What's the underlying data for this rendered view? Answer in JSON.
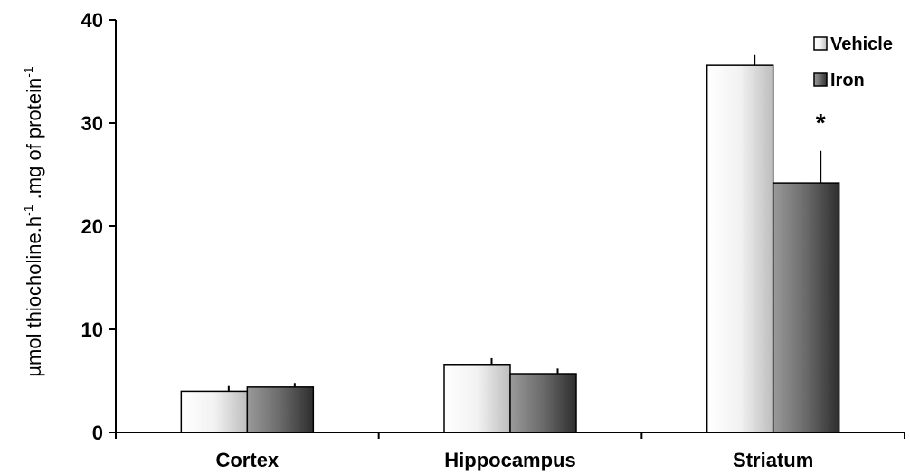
{
  "chart_data": {
    "type": "bar",
    "ylabel": "µmol thiocholine.h",
    "ylabel_sup1": "-1",
    "ylabel_mid": " .mg of protein",
    "ylabel_sup2": "-1",
    "categories": [
      "Cortex",
      "Hippocampus",
      "Striatum"
    ],
    "ylim": [
      0,
      40
    ],
    "yticks": [
      "0",
      "10",
      "20",
      "30",
      "40"
    ],
    "series": [
      {
        "name": "Vehicle",
        "values": [
          4.0,
          6.6,
          35.6
        ],
        "errors": [
          0.5,
          0.6,
          1.0
        ],
        "color": "#ededed"
      },
      {
        "name": "Iron",
        "values": [
          4.4,
          5.7,
          24.2
        ],
        "errors": [
          0.4,
          0.5,
          3.1
        ],
        "color": "#6e6e6e"
      }
    ],
    "annotations": [
      {
        "text": "*",
        "category": "Striatum",
        "series": "Iron"
      }
    ],
    "legend_position": "top-right",
    "grid": false
  }
}
